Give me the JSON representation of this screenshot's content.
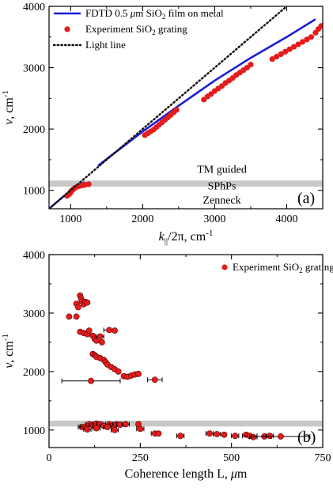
{
  "chart_data": [
    {
      "type": "line",
      "panel_label": "(a)",
      "xlabel": "k",
      "xlabel_sub": "||",
      "xlabel_tail": "/2π, cm",
      "xlabel_sup": "-1",
      "ylabel": "ν, cm",
      "ylabel_sup": "-1",
      "xlim": [
        700,
        4500
      ],
      "ylim": [
        700,
        4000
      ],
      "xticks": [
        1000,
        2000,
        3000,
        4000
      ],
      "yticks": [
        1000,
        2000,
        3000,
        4000
      ],
      "band": {
        "from": 1060,
        "to": 1160,
        "color": "#c8c8c8"
      },
      "annotations": [
        {
          "text": "TM guided",
          "x": 3100,
          "y": 1350
        },
        {
          "text": "SPhPs",
          "x": 3100,
          "y": 1080
        },
        {
          "text": "Zenneck",
          "x": 3100,
          "y": 850
        }
      ],
      "legend": {
        "placement": "top-left",
        "entries": [
          {
            "kind": "line",
            "color": "#1c1cd6",
            "text": "FDTD 0.5 ",
            "mu": "μ",
            "tail": "m SiO",
            "sub": "2",
            "end": " film on metal"
          },
          {
            "kind": "dot",
            "color": "#e31c1c",
            "text": "Experiment SiO",
            "sub": "2",
            "end": " grating"
          },
          {
            "kind": "dotted",
            "color": "#111111",
            "text": "Light line"
          }
        ]
      },
      "series": [
        {
          "name": "FDTD 0.5 μm SiO2 film on metal",
          "color": "#1c1cd6",
          "style": "line",
          "segments": [
            [
              [
                700,
                700
              ],
              [
                800,
                800
              ],
              [
                900,
                900
              ],
              [
                1000,
                1000
              ],
              [
                1100,
                1090
              ],
              [
                1150,
                1110
              ],
              [
                1200,
                1130
              ]
            ],
            [
              [
                1380,
                1400
              ],
              [
                1600,
                1600
              ],
              [
                2000,
                1960
              ],
              [
                2500,
                2380
              ],
              [
                3000,
                2790
              ],
              [
                3500,
                3160
              ],
              [
                4000,
                3500
              ],
              [
                4400,
                3790
              ]
            ]
          ]
        },
        {
          "name": "Experiment SiO2 grating",
          "color": "#e31c1c",
          "style": "scatter",
          "points": [
            [
              950,
              910
            ],
            [
              970,
              930
            ],
            [
              990,
              950
            ],
            [
              1000,
              970
            ],
            [
              1010,
              990
            ],
            [
              1020,
              1000
            ],
            [
              1040,
              1020
            ],
            [
              1060,
              1040
            ],
            [
              1090,
              1060
            ],
            [
              1120,
              1070
            ],
            [
              1160,
              1080
            ],
            [
              1200,
              1090
            ],
            [
              1250,
              1100
            ],
            [
              2030,
              1900
            ],
            [
              2070,
              1930
            ],
            [
              2110,
              1960
            ],
            [
              2150,
              1990
            ],
            [
              2190,
              2030
            ],
            [
              2230,
              2070
            ],
            [
              2270,
              2110
            ],
            [
              2310,
              2150
            ],
            [
              2350,
              2190
            ],
            [
              2390,
              2230
            ],
            [
              2430,
              2270
            ],
            [
              2470,
              2310
            ],
            [
              2850,
              2480
            ],
            [
              2900,
              2530
            ],
            [
              2950,
              2570
            ],
            [
              3000,
              2620
            ],
            [
              3050,
              2660
            ],
            [
              3100,
              2700
            ],
            [
              3150,
              2750
            ],
            [
              3200,
              2790
            ],
            [
              3250,
              2830
            ],
            [
              3300,
              2880
            ],
            [
              3350,
              2920
            ],
            [
              3400,
              2960
            ],
            [
              3450,
              3000
            ],
            [
              3500,
              3050
            ],
            [
              3800,
              3140
            ],
            [
              3860,
              3180
            ],
            [
              3920,
              3220
            ],
            [
              3980,
              3260
            ],
            [
              4040,
              3300
            ],
            [
              4100,
              3340
            ],
            [
              4160,
              3380
            ],
            [
              4220,
              3420
            ],
            [
              4280,
              3460
            ],
            [
              4340,
              3500
            ],
            [
              4400,
              3570
            ],
            [
              4440,
              3630
            ],
            [
              4480,
              3680
            ]
          ]
        },
        {
          "name": "Light line",
          "color": "#111111",
          "style": "dotted",
          "points": [
            [
              700,
              700
            ],
            [
              4000,
              4000
            ]
          ]
        }
      ]
    },
    {
      "type": "scatter",
      "panel_label": "(b)",
      "xlabel": "Coherence length L, ",
      "xlabel_mu": "μ",
      "xlabel_tail": "m",
      "ylabel": "ν, cm",
      "ylabel_sup": "-1",
      "xlim": [
        0,
        750
      ],
      "ylim": [
        700,
        4000
      ],
      "xticks": [
        0,
        250,
        500,
        750
      ],
      "yticks": [
        1000,
        2000,
        3000,
        4000
      ],
      "band": {
        "from": 1060,
        "to": 1160,
        "color": "#c8c8c8"
      },
      "legend": {
        "placement": "top-right",
        "entries": [
          {
            "kind": "dot",
            "color": "#e31c1c",
            "text": "Experiment SiO",
            "sub": "2",
            "end": " grating"
          }
        ]
      },
      "series": [
        {
          "name": "Experiment SiO2 grating",
          "color": "#e31c1c",
          "points": [
            {
              "x": 55,
              "y": 2940,
              "err": 0
            },
            {
              "x": 75,
              "y": 3160,
              "err": 0
            },
            {
              "x": 80,
              "y": 3100,
              "err": 0
            },
            {
              "x": 85,
              "y": 3300,
              "err": 0
            },
            {
              "x": 88,
              "y": 3250,
              "err": 0
            },
            {
              "x": 90,
              "y": 3200,
              "err": 0
            },
            {
              "x": 95,
              "y": 3150,
              "err": 0
            },
            {
              "x": 100,
              "y": 3190,
              "err": 0
            },
            {
              "x": 105,
              "y": 3180,
              "err": 0
            },
            {
              "x": 75,
              "y": 2940,
              "err": 0
            },
            {
              "x": 85,
              "y": 2680,
              "err": 0
            },
            {
              "x": 95,
              "y": 2660,
              "err": 5
            },
            {
              "x": 105,
              "y": 2640,
              "err": 5
            },
            {
              "x": 110,
              "y": 2700,
              "err": 0
            },
            {
              "x": 120,
              "y": 2610,
              "err": 5
            },
            {
              "x": 125,
              "y": 2560,
              "err": 5
            },
            {
              "x": 130,
              "y": 2530,
              "err": 5
            },
            {
              "x": 140,
              "y": 2600,
              "err": 10
            },
            {
              "x": 145,
              "y": 2500,
              "err": 0
            },
            {
              "x": 165,
              "y": 2710,
              "err": 15
            },
            {
              "x": 180,
              "y": 2700,
              "err": 0
            },
            {
              "x": 120,
              "y": 2300,
              "err": 5
            },
            {
              "x": 125,
              "y": 2280,
              "err": 5
            },
            {
              "x": 130,
              "y": 2250,
              "err": 5
            },
            {
              "x": 140,
              "y": 2230,
              "err": 5
            },
            {
              "x": 150,
              "y": 2200,
              "err": 5
            },
            {
              "x": 155,
              "y": 2160,
              "err": 5
            },
            {
              "x": 160,
              "y": 2120,
              "err": 5
            },
            {
              "x": 170,
              "y": 2080,
              "err": 5
            },
            {
              "x": 180,
              "y": 2040,
              "err": 5
            },
            {
              "x": 190,
              "y": 2000,
              "err": 5
            },
            {
              "x": 205,
              "y": 1920,
              "err": 5
            },
            {
              "x": 215,
              "y": 1910,
              "err": 5
            },
            {
              "x": 225,
              "y": 1930,
              "err": 5
            },
            {
              "x": 235,
              "y": 1950,
              "err": 5
            },
            {
              "x": 245,
              "y": 1960,
              "err": 5
            },
            {
              "x": 115,
              "y": 1840,
              "err": 80
            },
            {
              "x": 290,
              "y": 1860,
              "err": 20
            },
            {
              "x": 90,
              "y": 1050,
              "err": 10
            },
            {
              "x": 100,
              "y": 1060,
              "err": 15
            },
            {
              "x": 110,
              "y": 1100,
              "err": 10
            },
            {
              "x": 120,
              "y": 1080,
              "err": 10
            },
            {
              "x": 130,
              "y": 1110,
              "err": 10
            },
            {
              "x": 140,
              "y": 1100,
              "err": 10
            },
            {
              "x": 150,
              "y": 1070,
              "err": 10
            },
            {
              "x": 165,
              "y": 1100,
              "err": 10
            },
            {
              "x": 175,
              "y": 1080,
              "err": 10
            },
            {
              "x": 185,
              "y": 1100,
              "err": 10
            },
            {
              "x": 195,
              "y": 1090,
              "err": 10
            },
            {
              "x": 210,
              "y": 1100,
              "err": 10
            },
            {
              "x": 245,
              "y": 1100,
              "err": 5
            },
            {
              "x": 105,
              "y": 1010,
              "err": 10
            },
            {
              "x": 130,
              "y": 1030,
              "err": 10
            },
            {
              "x": 160,
              "y": 1050,
              "err": 10
            },
            {
              "x": 180,
              "y": 1000,
              "err": 10
            },
            {
              "x": 250,
              "y": 1020,
              "err": 10
            },
            {
              "x": 290,
              "y": 940,
              "err": 10
            },
            {
              "x": 300,
              "y": 940,
              "err": 5
            },
            {
              "x": 360,
              "y": 900,
              "err": 10
            },
            {
              "x": 440,
              "y": 940,
              "err": 10
            },
            {
              "x": 460,
              "y": 930,
              "err": 10
            },
            {
              "x": 480,
              "y": 920,
              "err": 5
            },
            {
              "x": 510,
              "y": 900,
              "err": 10
            },
            {
              "x": 540,
              "y": 920,
              "err": 5
            },
            {
              "x": 550,
              "y": 900,
              "err": 20
            },
            {
              "x": 560,
              "y": 880,
              "err": 10
            },
            {
              "x": 590,
              "y": 890,
              "err": 20
            },
            {
              "x": 605,
              "y": 900,
              "err": 10
            },
            {
              "x": 635,
              "y": 890,
              "err": 80
            }
          ]
        }
      ]
    }
  ]
}
